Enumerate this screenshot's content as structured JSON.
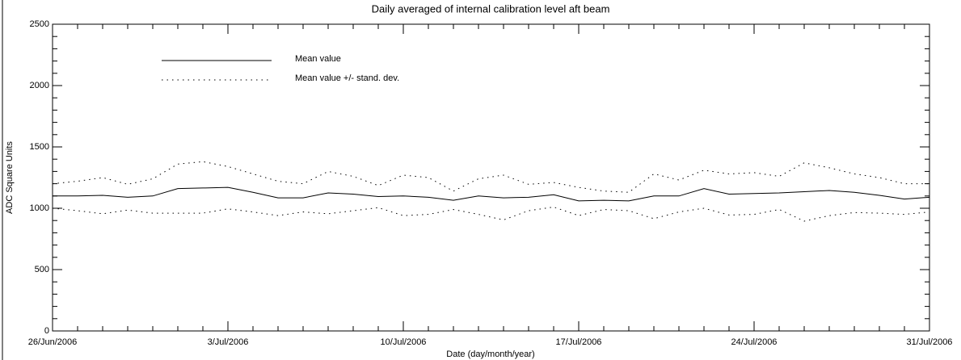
{
  "chart_data": {
    "type": "line",
    "title": "Daily averaged of internal calibration level aft beam",
    "xlabel": "Date (day/month/year)",
    "ylabel": "ADC Square Units",
    "x": [
      "2006-06-26",
      "2006-06-27",
      "2006-06-28",
      "2006-06-29",
      "2006-06-30",
      "2006-07-01",
      "2006-07-02",
      "2006-07-03",
      "2006-07-04",
      "2006-07-05",
      "2006-07-06",
      "2006-07-07",
      "2006-07-08",
      "2006-07-09",
      "2006-07-10",
      "2006-07-11",
      "2006-07-12",
      "2006-07-13",
      "2006-07-14",
      "2006-07-15",
      "2006-07-16",
      "2006-07-17",
      "2006-07-18",
      "2006-07-19",
      "2006-07-20",
      "2006-07-21",
      "2006-07-22",
      "2006-07-23",
      "2006-07-24",
      "2006-07-25",
      "2006-07-26",
      "2006-07-27",
      "2006-07-28",
      "2006-07-29",
      "2006-07-30",
      "2006-07-31"
    ],
    "series": [
      {
        "name": "Mean value",
        "color": "#000000",
        "dash": "solid",
        "values": [
          1100,
          1100,
          1105,
          1090,
          1100,
          1160,
          1165,
          1170,
          1130,
          1085,
          1085,
          1125,
          1115,
          1095,
          1100,
          1090,
          1065,
          1100,
          1085,
          1090,
          1110,
          1060,
          1065,
          1060,
          1100,
          1100,
          1160,
          1115,
          1120,
          1125,
          1135,
          1145,
          1130,
          1105,
          1075,
          1090
        ]
      },
      {
        "name": "Mean value +/- stand. dev.",
        "color": "#000000",
        "dash": "dotted",
        "values": [
          1200,
          1220,
          1250,
          1195,
          1240,
          1360,
          1380,
          1340,
          1280,
          1220,
          1200,
          1300,
          1260,
          1185,
          1270,
          1250,
          1140,
          1240,
          1270,
          1195,
          1210,
          1170,
          1140,
          1130,
          1280,
          1230,
          1310,
          1280,
          1290,
          1260,
          1370,
          1330,
          1280,
          1250,
          1200,
          1200
        ]
      },
      {
        "color": "#000000",
        "dash": "dotted",
        "values": [
          1000,
          980,
          955,
          985,
          960,
          960,
          960,
          995,
          970,
          940,
          970,
          955,
          980,
          1005,
          940,
          950,
          990,
          950,
          905,
          980,
          1010,
          940,
          990,
          980,
          915,
          970,
          1000,
          945,
          950,
          990,
          895,
          940,
          965,
          960,
          950,
          970
        ]
      }
    ],
    "xlim": [
      "2006-06-26",
      "2006-07-31"
    ],
    "xticks": [
      {
        "value": "2006-06-26",
        "label": "26/Jun/2006"
      },
      {
        "value": "2006-07-03",
        "label": "3/Jul/2006"
      },
      {
        "value": "2006-07-10",
        "label": "10/Jul/2006"
      },
      {
        "value": "2006-07-17",
        "label": "17/Jul/2006"
      },
      {
        "value": "2006-07-24",
        "label": "24/Jul/2006"
      },
      {
        "value": "2006-07-31",
        "label": "31/Jul/2006"
      }
    ],
    "ylim": [
      0,
      2500
    ],
    "yticks": [
      0,
      500,
      1000,
      1500,
      2000,
      2500
    ],
    "yminorticks": [
      100,
      200,
      300,
      400,
      600,
      700,
      800,
      900,
      1100,
      1200,
      1300,
      1400,
      1600,
      1700,
      1800,
      1900,
      2100,
      2200,
      2300,
      2400
    ],
    "legend": "top-left"
  }
}
